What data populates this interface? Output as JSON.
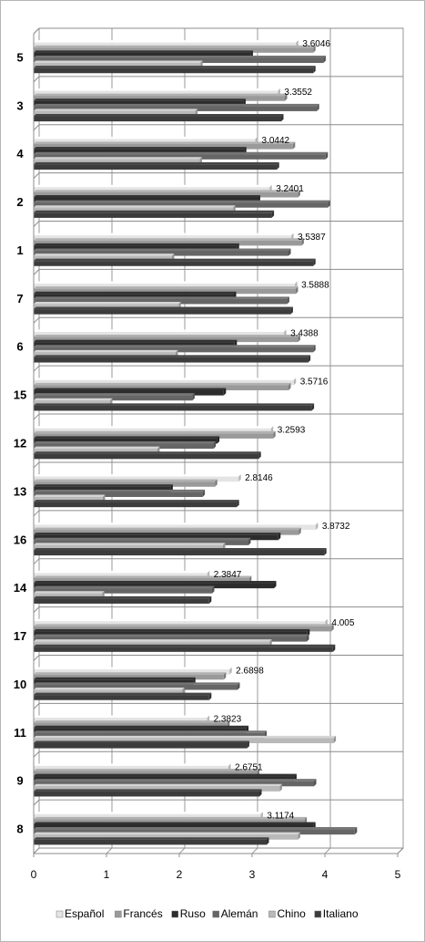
{
  "chart_data": {
    "type": "bar",
    "orientation": "horizontal",
    "categories": [
      "5",
      "3",
      "4",
      "2",
      "1",
      "7",
      "6",
      "15",
      "12",
      "13",
      "16",
      "14",
      "17",
      "10",
      "11",
      "9",
      "8"
    ],
    "series": [
      {
        "name": "Español",
        "color": "#e4e4e4",
        "values": [
          3.6046,
          3.3552,
          3.0442,
          3.2401,
          3.5387,
          3.5888,
          3.4388,
          3.5716,
          3.2593,
          2.8146,
          3.8732,
          2.3847,
          4.005,
          2.6898,
          2.3823,
          2.6751,
          3.1174
        ]
      },
      {
        "name": "Francés",
        "color": "#9a9a9a",
        "values": [
          3.84,
          3.45,
          3.56,
          3.63,
          3.68,
          3.6,
          3.63,
          3.5,
          3.29,
          2.49,
          3.64,
          2.96,
          4.09,
          2.61,
          2.66,
          3.07,
          3.72
        ]
      },
      {
        "name": "Ruso",
        "color": "#2c2c2c",
        "values": [
          2.98,
          2.88,
          2.89,
          3.08,
          2.79,
          2.75,
          2.76,
          2.61,
          2.52,
          1.88,
          3.36,
          3.3,
          3.76,
          2.19,
          2.92,
          3.58,
          3.84
        ]
      },
      {
        "name": "Alemán",
        "color": "#666666",
        "values": [
          3.98,
          3.89,
          4.01,
          4.04,
          3.5,
          3.48,
          3.84,
          2.18,
          2.47,
          2.32,
          2.95,
          2.45,
          3.75,
          2.8,
          3.17,
          3.85,
          4.41
        ]
      },
      {
        "name": "Chino",
        "color": "#b9b9b9",
        "values": [
          2.29,
          2.22,
          2.28,
          2.74,
          1.9,
          1.99,
          1.95,
          1.05,
          1.7,
          0.95,
          2.6,
          0.94,
          3.24,
          2.04,
          4.12,
          3.38,
          3.63
        ]
      },
      {
        "name": "Italiano",
        "color": "#3c3c3c",
        "values": [
          3.84,
          3.4,
          3.34,
          3.27,
          3.84,
          3.53,
          3.77,
          3.82,
          3.09,
          2.79,
          3.99,
          2.41,
          4.11,
          2.41,
          2.93,
          3.1,
          3.2
        ]
      }
    ],
    "data_labels": [
      "3.6046",
      "3.3552",
      "3.0442",
      "3.2401",
      "3.5387",
      "3.5888",
      "3.4388",
      "3.5716",
      "3.2593",
      "2.8146",
      "3.8732",
      "2.3847",
      "4.005",
      "2.6898",
      "2.3823",
      "2.6751",
      "3.1174"
    ],
    "x_ticks": [
      "0",
      "1",
      "2",
      "3",
      "4",
      "5"
    ],
    "xlim": [
      0,
      5
    ],
    "grid": true,
    "legend": "bottom"
  }
}
